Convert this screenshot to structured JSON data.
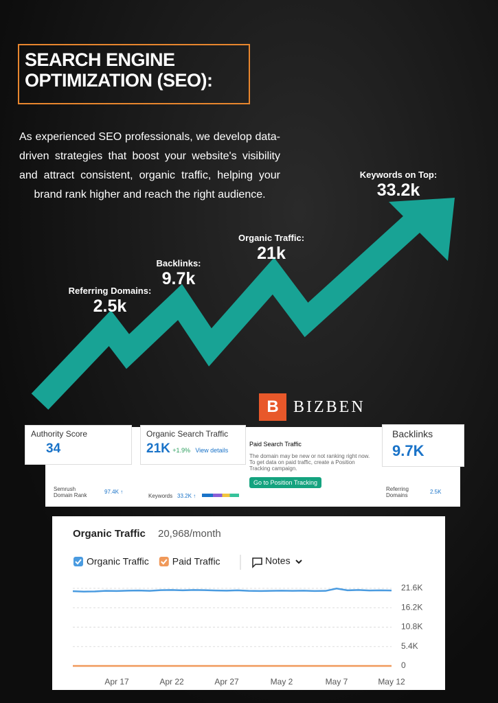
{
  "header": {
    "title": "SEARCH ENGINE OPTIMIZATION (SEO):"
  },
  "intro": "As experienced SEO professionals, we develop data-driven strategies that boost your website's visibility and attract consistent, organic traffic, helping your brand rank higher and reach the right audience.",
  "stats": [
    {
      "label": "Referring Domains:",
      "value": "2.5k"
    },
    {
      "label": "Backlinks:",
      "value": "9.7k"
    },
    {
      "label": "Organic Traffic:",
      "value": "21k"
    },
    {
      "label": "Keywords on Top:",
      "value": "33.2k"
    }
  ],
  "brand": {
    "letter": "B",
    "name": "BIZBEN"
  },
  "dashboard": {
    "authority": {
      "label": "Authority Score",
      "value": "34"
    },
    "organic": {
      "label": "Organic Search Traffic",
      "value": "21K",
      "change": "+1.9%",
      "link": "View details"
    },
    "paid": {
      "label": "Paid Search Traffic",
      "note": "The domain may be new or not ranking right now. To get data on paid traffic, create a Position Tracking campaign.",
      "button": "Go to Position Tracking"
    },
    "backlinks": {
      "label": "Backlinks",
      "value": "9.7K"
    },
    "rank": {
      "label": "Semrush Domain Rank",
      "value": "97.4K ↑"
    },
    "keywords": {
      "label": "Keywords",
      "value": "33.2K ↑"
    },
    "referring": {
      "label": "Referring Domains",
      "value": "2.5K"
    }
  },
  "chart_data": {
    "type": "line",
    "title": "Organic Traffic",
    "subtitle": "20,968/month",
    "notes": "Notes",
    "x": [
      null,
      null,
      null,
      null,
      "Apr 17",
      null,
      null,
      null,
      null,
      "Apr 22",
      null,
      null,
      null,
      null,
      "Apr 27",
      null,
      null,
      null,
      null,
      "May 2",
      null,
      null,
      null,
      null,
      "May 7",
      null,
      null,
      null,
      null,
      "May 12"
    ],
    "series": [
      {
        "name": "Organic Traffic",
        "color": "#4a9be0",
        "values": [
          20800,
          20700,
          20750,
          20900,
          20850,
          20950,
          21000,
          20900,
          21100,
          21150,
          21050,
          21150,
          21100,
          21000,
          20950,
          21050,
          20900,
          20850,
          20900,
          20950,
          20900,
          20950,
          20850,
          20900,
          21550,
          21050,
          21150,
          21000,
          21050,
          21000
        ]
      },
      {
        "name": "Paid Traffic",
        "color": "#f0995a",
        "values": [
          0,
          0,
          0,
          0,
          0,
          0,
          0,
          0,
          0,
          0,
          0,
          0,
          0,
          0,
          0,
          0,
          0,
          0,
          0,
          0,
          0,
          0,
          0,
          0,
          0,
          0,
          0,
          0,
          0,
          0
        ]
      }
    ],
    "ylim": [
      0,
      21600
    ],
    "yticks": [
      0,
      {
        "value": 5400,
        "label": "5.4K"
      },
      {
        "value": 10800,
        "label": "10.8K"
      },
      {
        "value": 16200,
        "label": "16.2K"
      },
      {
        "value": 21600,
        "label": "21.6K"
      }
    ],
    "grid": true
  }
}
